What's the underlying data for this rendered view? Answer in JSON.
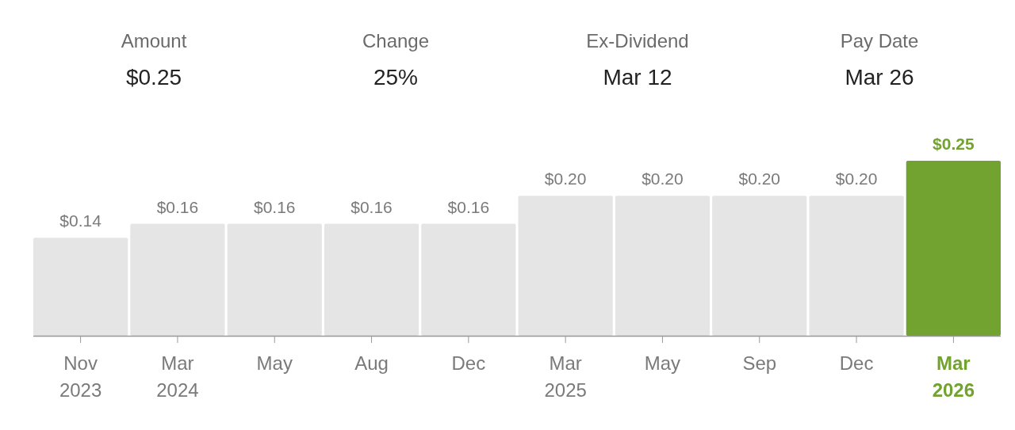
{
  "chart_data": [
    {
      "type": "other",
      "annotations": [
        "Amount",
        "$0.25",
        "Change",
        "25%",
        "Ex-Dividend",
        "Mar 12",
        "Pay Date",
        "Mar 26"
      ]
    },
    {
      "type": "bar",
      "categories": [
        "Nov\n2023",
        "Mar\n2024",
        "May",
        "Aug",
        "Dec",
        "Mar\n2025",
        "May",
        "Sep",
        "Dec",
        "Mar\n2026"
      ],
      "values": [
        0.14,
        0.16,
        0.16,
        0.16,
        0.16,
        0.2,
        0.2,
        0.2,
        0.2,
        0.25
      ],
      "colors": [
        "#e5e5e5",
        "#e5e5e5",
        "#e5e5e5",
        "#e5e5e5",
        "#e5e5e5",
        "#e5e5e5",
        "#e5e5e5",
        "#e5e5e5",
        "#e5e5e5",
        "#72a22f"
      ],
      "value_labels": [
        "$0.14",
        "$0.16",
        "$0.16",
        "$0.16",
        "$0.16",
        "$0.20",
        "$0.20",
        "$0.20",
        "$0.20",
        "$0.25"
      ]
    }
  ]
}
